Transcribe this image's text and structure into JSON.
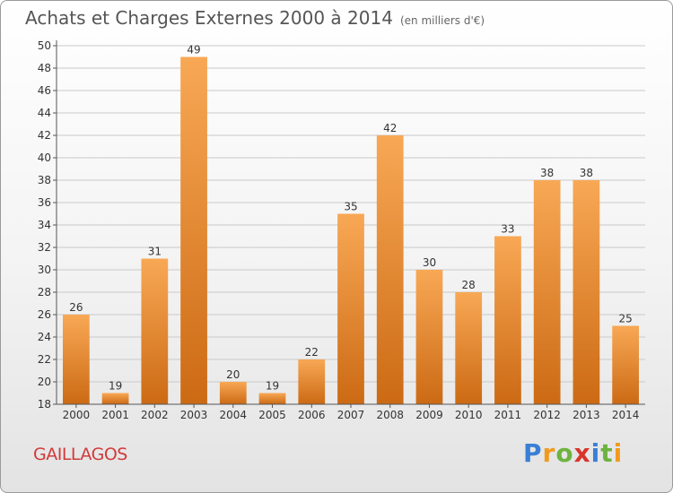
{
  "title": "Achats et Charges Externes 2000 à 2014",
  "subtitle": "(en milliers d'€)",
  "commune": "GAILLAGOS",
  "logo": {
    "letters": [
      "P",
      "r",
      "o",
      "x",
      "i",
      "t",
      "i"
    ],
    "colors": [
      "#3a7fd5",
      "#f29a1f",
      "#6db33f",
      "#d8342c",
      "#3a7fd5",
      "#6db33f",
      "#f29a1f"
    ]
  },
  "colors": {
    "bar_light": "#f8a855",
    "bar_dark": "#cc6a14",
    "axis": "#555555",
    "grid": "#c9c9c9"
  },
  "chart_data": {
    "type": "bar",
    "title": "Achats et Charges Externes 2000 à 2014",
    "subtitle": "(en milliers d'€)",
    "categories": [
      "2000",
      "2001",
      "2002",
      "2003",
      "2004",
      "2005",
      "2006",
      "2007",
      "2008",
      "2009",
      "2010",
      "2011",
      "2012",
      "2013",
      "2014"
    ],
    "values": [
      26,
      19,
      31,
      49,
      20,
      19,
      22,
      35,
      42,
      30,
      28,
      33,
      38,
      38,
      25
    ],
    "ylim": [
      18,
      50
    ],
    "yticks": [
      18,
      20,
      22,
      24,
      26,
      28,
      30,
      32,
      34,
      36,
      38,
      40,
      42,
      44,
      46,
      48,
      50
    ],
    "grid": "horizontal",
    "xlabel": "",
    "ylabel": ""
  }
}
